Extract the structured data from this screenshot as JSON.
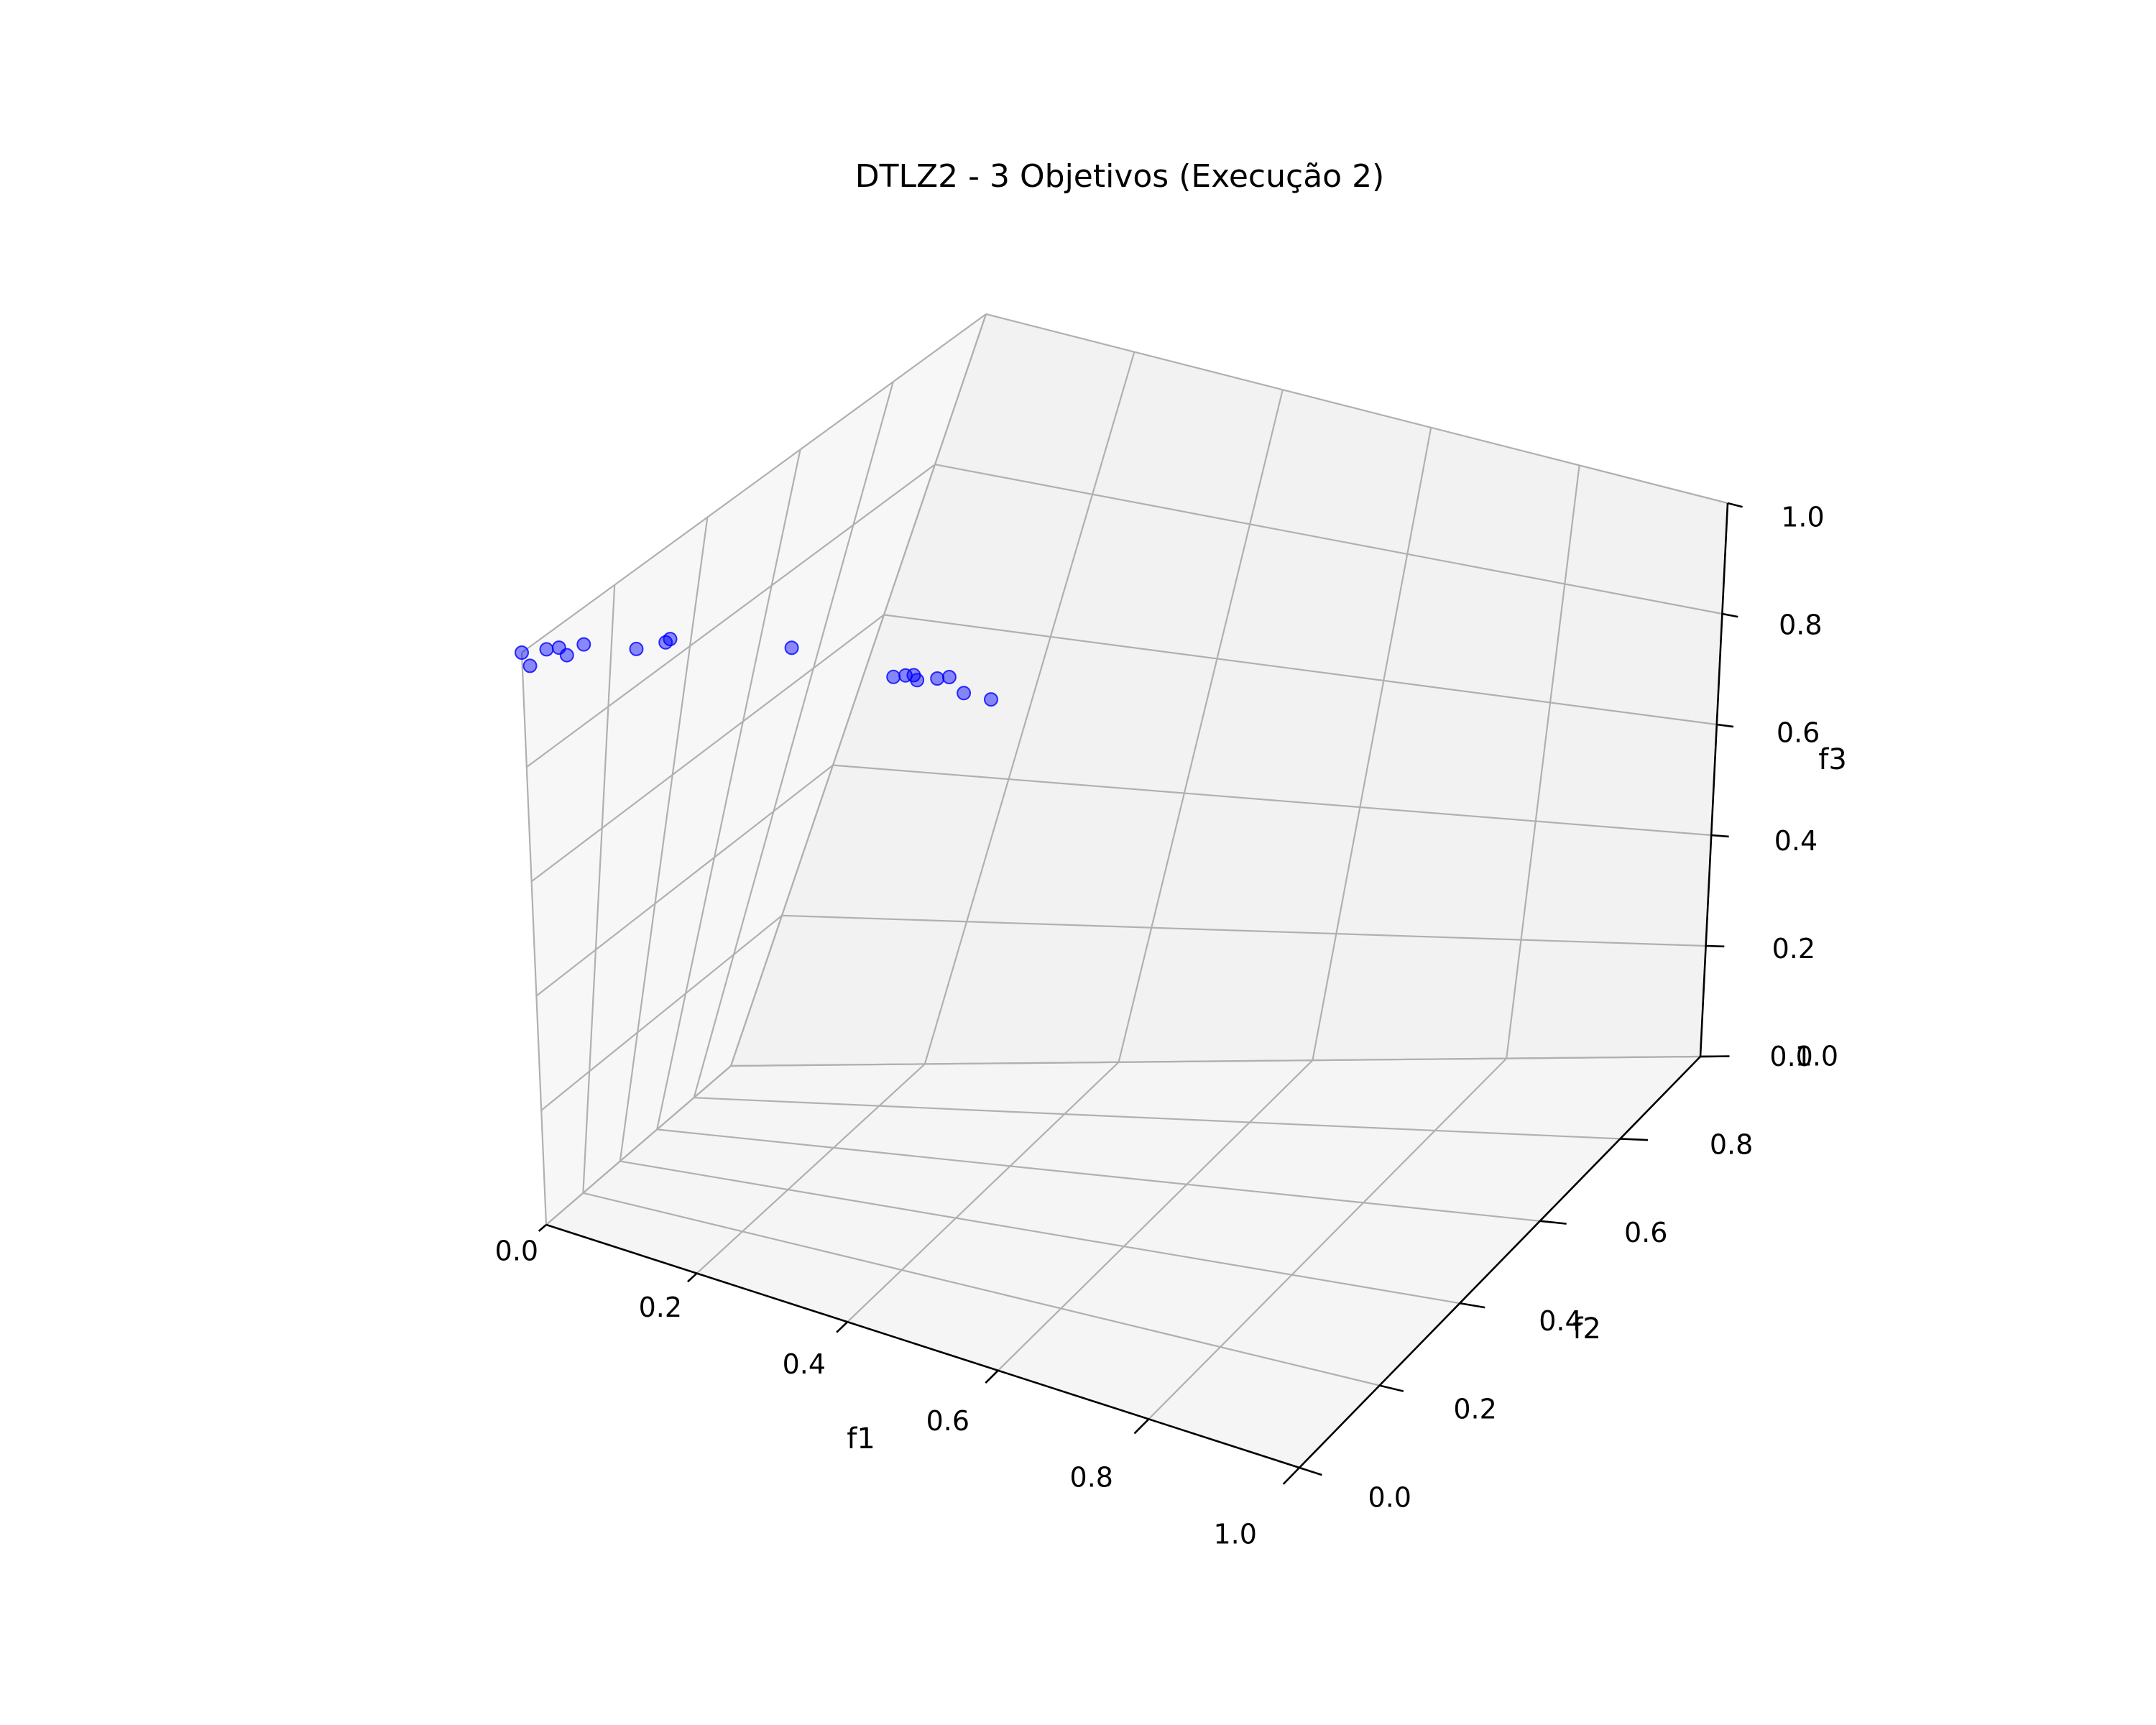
{
  "chart_data": {
    "type": "scatter",
    "projection": "3d",
    "title": "DTLZ2 - 3 Objetivos (Execução 2)",
    "xlabel": "f1",
    "ylabel": "f2",
    "zlabel": "f3",
    "xlim": [
      0,
      1
    ],
    "ylim": [
      0,
      1
    ],
    "zlim": [
      0,
      1
    ],
    "xticks": [
      "0.0",
      "0.2",
      "0.4",
      "0.6",
      "0.8",
      "1.0"
    ],
    "yticks": [
      "0.0",
      "0.2",
      "0.4",
      "0.6",
      "0.8",
      "1.0"
    ],
    "zticks": [
      "0.0",
      "0.2",
      "0.4",
      "0.6",
      "0.8",
      "1.0"
    ],
    "grid": true,
    "marker_color": "#0000ff",
    "series": [
      {
        "name": "solutions",
        "points": [
          {
            "f1": 0.0,
            "f2": 0.0,
            "f3": 1.0
          },
          {
            "f1": 0.01,
            "f2": 0.0,
            "f3": 0.98
          },
          {
            "f1": 0.02,
            "f2": 0.02,
            "f3": 1.0
          },
          {
            "f1": 0.03,
            "f2": 0.03,
            "f3": 1.0
          },
          {
            "f1": 0.04,
            "f2": 0.03,
            "f3": 0.99
          },
          {
            "f1": 0.05,
            "f2": 0.05,
            "f3": 1.0
          },
          {
            "f1": 0.1,
            "f2": 0.08,
            "f3": 0.99
          },
          {
            "f1": 0.12,
            "f2": 0.11,
            "f3": 0.99
          },
          {
            "f1": 0.12,
            "f2": 0.12,
            "f3": 0.99
          },
          {
            "f1": 0.22,
            "f2": 0.22,
            "f3": 0.95
          },
          {
            "f1": 0.32,
            "f2": 0.28,
            "f3": 0.9
          },
          {
            "f1": 0.33,
            "f2": 0.29,
            "f3": 0.9
          },
          {
            "f1": 0.33,
            "f2": 0.31,
            "f3": 0.89
          },
          {
            "f1": 0.34,
            "f2": 0.3,
            "f3": 0.89
          },
          {
            "f1": 0.35,
            "f2": 0.33,
            "f3": 0.88
          },
          {
            "f1": 0.36,
            "f2": 0.34,
            "f3": 0.88
          },
          {
            "f1": 0.38,
            "f2": 0.34,
            "f3": 0.86
          },
          {
            "f1": 0.4,
            "f2": 0.37,
            "f3": 0.84
          }
        ]
      }
    ]
  }
}
